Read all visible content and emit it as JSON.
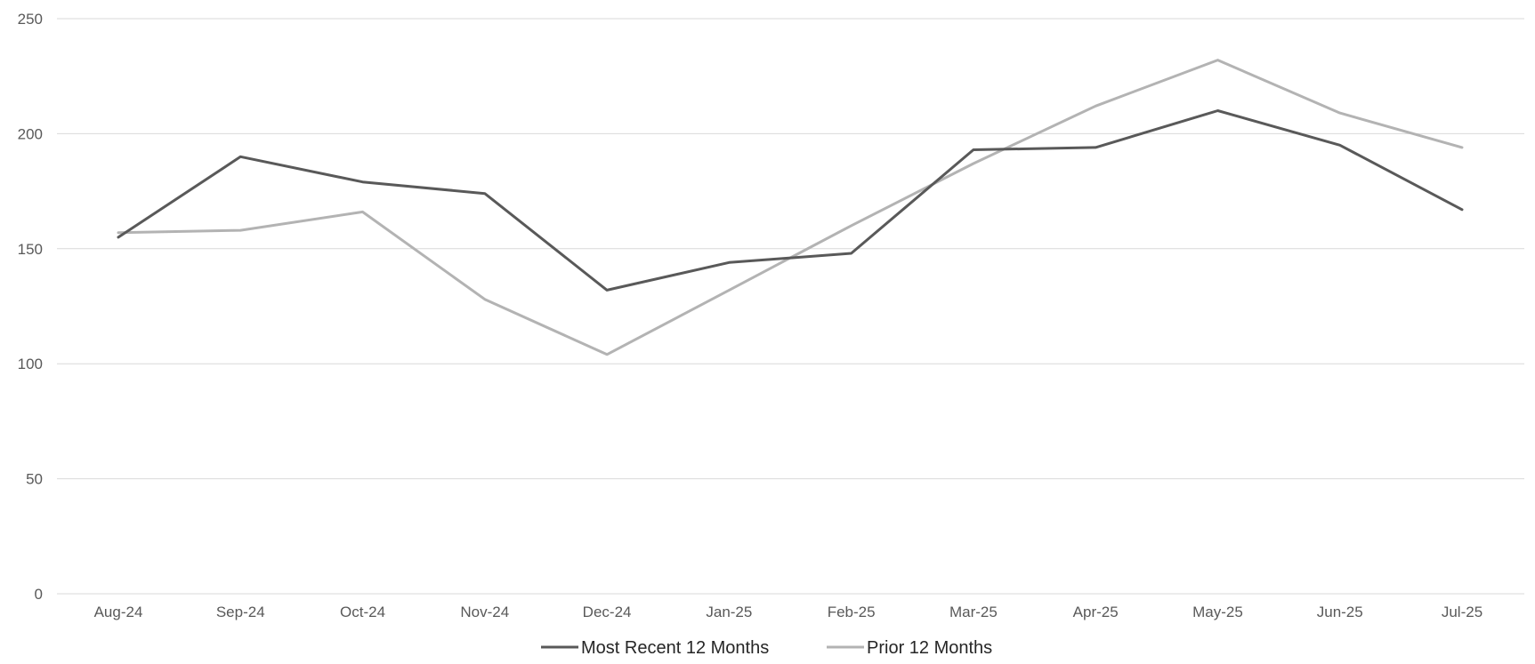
{
  "chart_data": {
    "type": "line",
    "title": "",
    "xlabel": "",
    "ylabel": "",
    "categories": [
      "Aug-24",
      "Sep-24",
      "Oct-24",
      "Nov-24",
      "Dec-24",
      "Jan-25",
      "Feb-25",
      "Mar-25",
      "Apr-25",
      "May-25",
      "Jun-25",
      "Jul-25"
    ],
    "ylim": [
      0,
      250
    ],
    "yticks": [
      0,
      50,
      100,
      150,
      200,
      250
    ],
    "grid": true,
    "legend_position": "bottom",
    "series": [
      {
        "name": "Most Recent 12 Months",
        "color": "#595959",
        "values": [
          155,
          190,
          179,
          174,
          132,
          144,
          148,
          193,
          194,
          210,
          195,
          167
        ]
      },
      {
        "name": "Prior 12 Months",
        "color": "#b3b3b3",
        "values": [
          157,
          158,
          166,
          128,
          104,
          132,
          160,
          187,
          212,
          232,
          209,
          194
        ]
      }
    ]
  }
}
